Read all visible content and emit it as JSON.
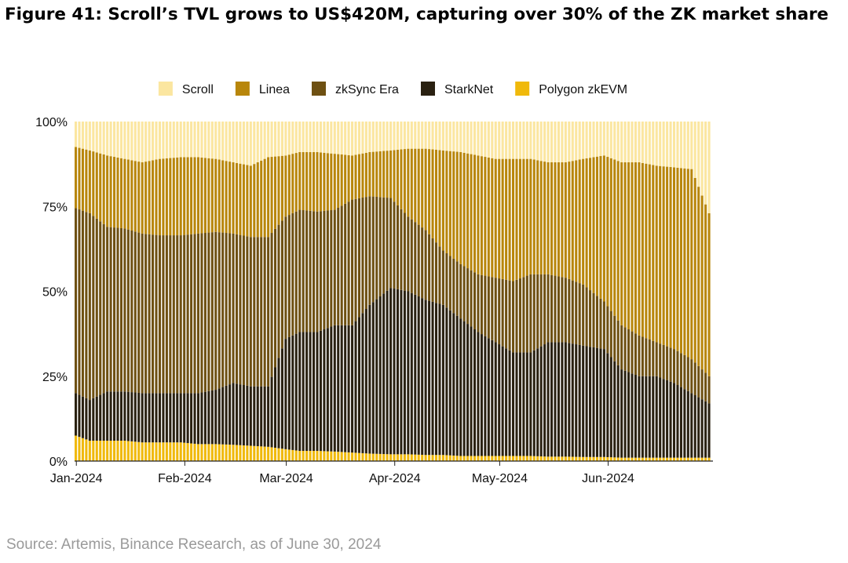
{
  "title": "Figure 41: Scroll’s TVL grows to US$420M, capturing over 30% of the ZK market share",
  "source": "Source: Artemis, Binance Research, as of June 30, 2024",
  "chart_data": {
    "type": "bar",
    "stacked": true,
    "normalized": true,
    "title": "Figure 41: Scroll’s TVL grows to US$420M, capturing over 30% of the ZK market share",
    "xlabel": "",
    "ylabel": "",
    "ylim": [
      0,
      100
    ],
    "y_unit": "%",
    "y_ticks": [
      "0%",
      "25%",
      "50%",
      "75%",
      "100%"
    ],
    "x_ticks": [
      "Jan-2024",
      "Feb-2024",
      "Mar-2024",
      "Apr-2024",
      "May-2024",
      "Jun-2024"
    ],
    "x_start": "2024-01-01",
    "x_end": "2024-06-30",
    "legend_position": "top",
    "grid": false,
    "series_order_bottom_to_top": [
      "Polygon zkEVM",
      "StarkNet",
      "zkSync Era",
      "Linea",
      "Scroll"
    ],
    "series": [
      {
        "name": "Scroll",
        "color": "#FBE6A0"
      },
      {
        "name": "Linea",
        "color": "#B8860B"
      },
      {
        "name": "zkSync Era",
        "color": "#6E5012"
      },
      {
        "name": "StarkNet",
        "color": "#2A2111"
      },
      {
        "name": "Polygon zkEVM",
        "color": "#F0B90B"
      }
    ],
    "cumulative_top_boundaries": {
      "dates": [
        "2024-01-01",
        "2024-01-05",
        "2024-01-10",
        "2024-01-15",
        "2024-01-20",
        "2024-01-25",
        "2024-01-31",
        "2024-02-05",
        "2024-02-10",
        "2024-02-15",
        "2024-02-20",
        "2024-02-25",
        "2024-03-01",
        "2024-03-05",
        "2024-03-10",
        "2024-03-15",
        "2024-03-20",
        "2024-03-25",
        "2024-03-31",
        "2024-04-05",
        "2024-04-10",
        "2024-04-15",
        "2024-04-20",
        "2024-04-25",
        "2024-04-30",
        "2024-05-05",
        "2024-05-10",
        "2024-05-15",
        "2024-05-20",
        "2024-05-25",
        "2024-05-31",
        "2024-06-05",
        "2024-06-10",
        "2024-06-15",
        "2024-06-20",
        "2024-06-25",
        "2024-06-30"
      ],
      "Polygon zkEVM": [
        7.5,
        6,
        6,
        6,
        5.5,
        5.5,
        5.5,
        5,
        5,
        4.8,
        4.5,
        4.2,
        3.5,
        3,
        3,
        2.8,
        2.5,
        2.2,
        2,
        2,
        1.8,
        1.8,
        1.5,
        1.5,
        1.5,
        1.5,
        1.5,
        1.3,
        1.3,
        1.2,
        1.2,
        1,
        1,
        1,
        1,
        1,
        1
      ],
      "StarkNet": [
        20,
        18,
        20.5,
        20.5,
        20,
        20,
        20,
        20,
        21,
        23,
        22,
        22,
        36,
        38,
        38,
        40,
        40,
        46,
        51,
        50,
        47.5,
        46,
        42,
        38,
        35,
        32,
        32,
        35,
        35,
        34,
        33,
        27,
        25,
        25,
        23,
        20,
        17
      ],
      "zkSync Era": [
        74.5,
        73,
        69,
        68.5,
        67,
        66.5,
        66.5,
        67,
        67.5,
        67,
        66,
        66,
        72,
        74,
        73.5,
        74,
        77,
        78,
        77.5,
        72,
        68,
        62,
        58,
        55,
        54,
        53,
        55,
        55,
        54,
        52,
        47,
        40,
        37,
        35,
        33,
        30,
        25
      ],
      "Linea": [
        92.5,
        91.5,
        90,
        89,
        88,
        89,
        89.5,
        89.5,
        89,
        88,
        87,
        89.5,
        90,
        91,
        91,
        90.5,
        90,
        91,
        91.5,
        92,
        92,
        91.5,
        91,
        90,
        89,
        89,
        89,
        88,
        88,
        89,
        90,
        88,
        88,
        87,
        86.5,
        86,
        73
      ],
      "Scroll": [
        100,
        100,
        100,
        100,
        100,
        100,
        100,
        100,
        100,
        100,
        100,
        100,
        100,
        100,
        100,
        100,
        100,
        100,
        100,
        100,
        100,
        100,
        100,
        100,
        100,
        100,
        100,
        100,
        100,
        100,
        100,
        100,
        100,
        100,
        100,
        100,
        100
      ]
    }
  }
}
